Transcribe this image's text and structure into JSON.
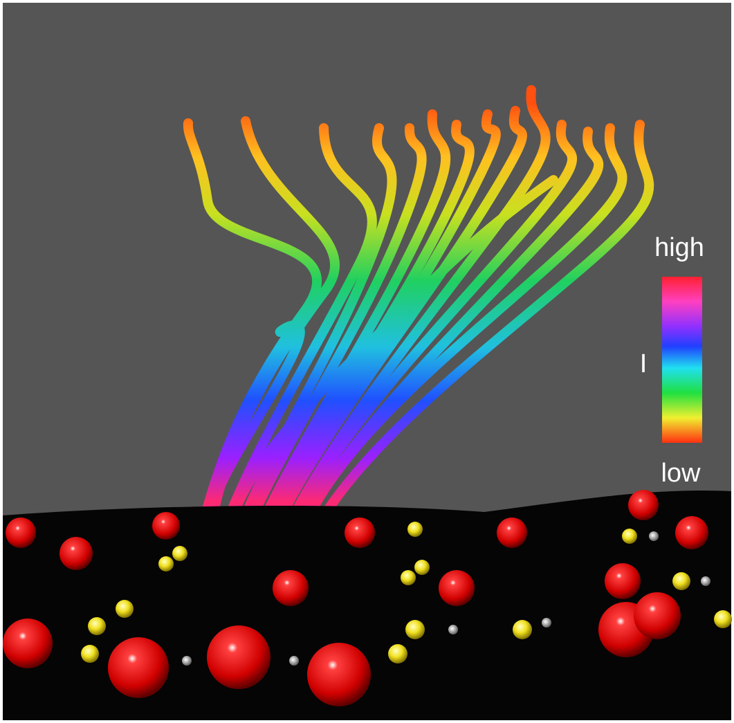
{
  "legend": {
    "top_label": "high",
    "middle_label": "I",
    "bottom_label": "low"
  }
}
